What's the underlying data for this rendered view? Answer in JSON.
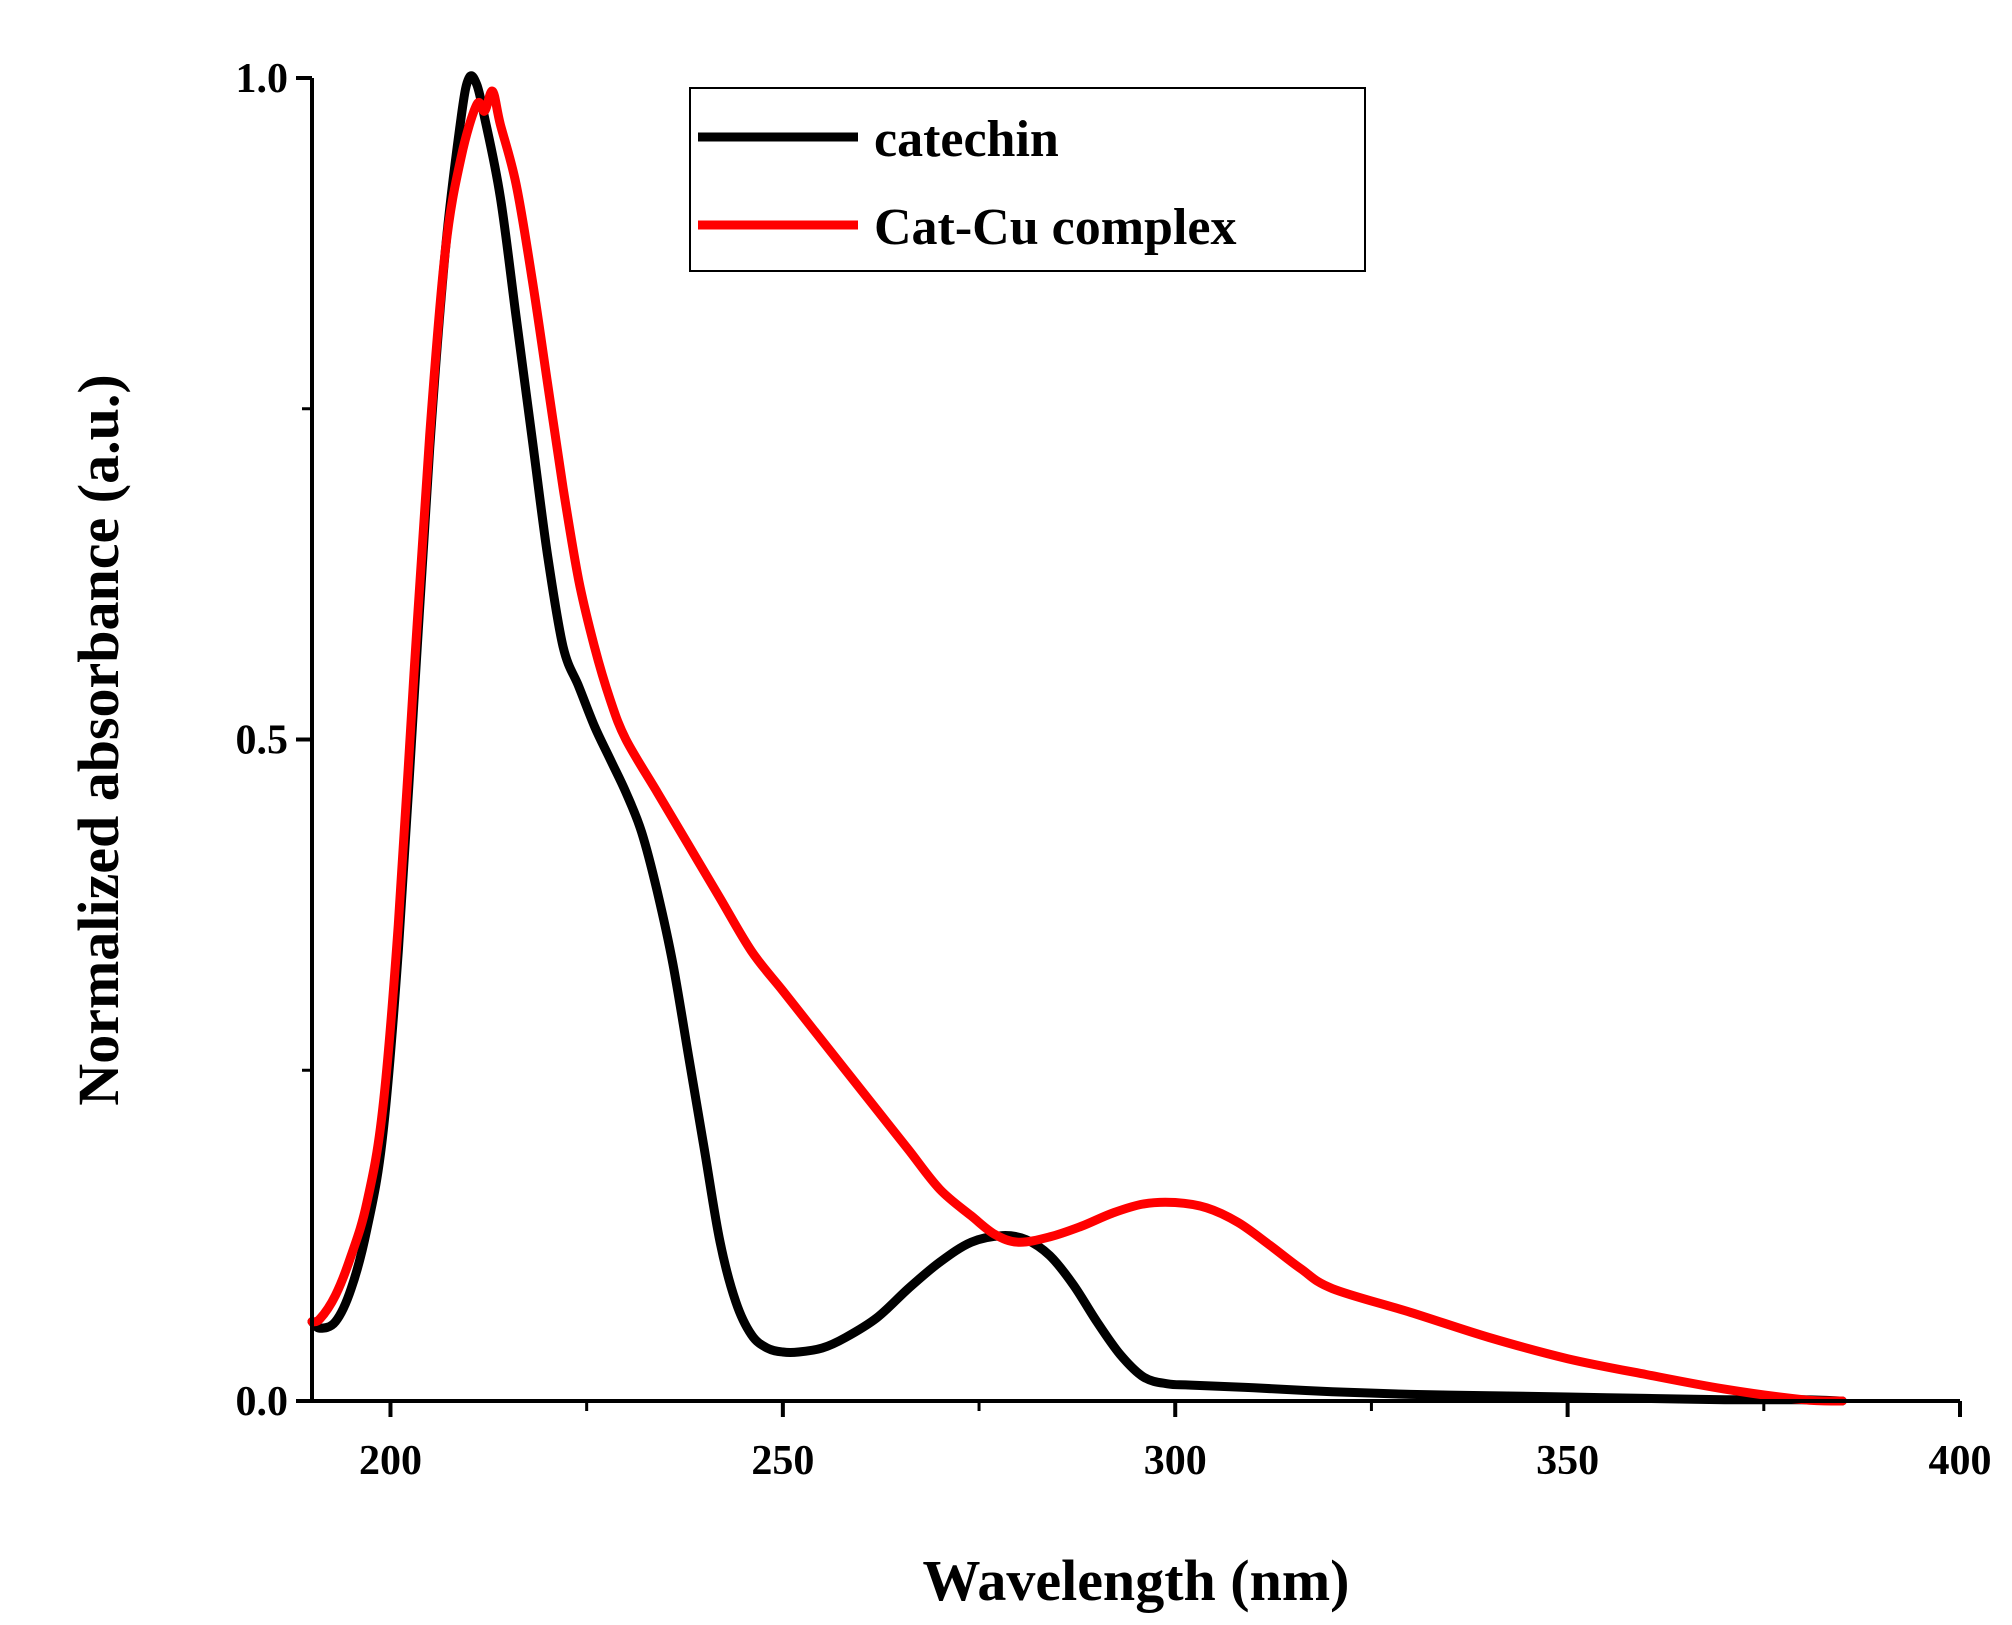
{
  "chart_data": {
    "type": "line",
    "title": "",
    "xlabel": "Wavelength (nm)",
    "ylabel": "Normalized absorbance (a.u.)",
    "xlim": [
      190,
      400
    ],
    "ylim": [
      0.0,
      1.0
    ],
    "x_ticks": [
      200,
      250,
      300,
      350,
      400
    ],
    "x_tick_labels": [
      "200",
      "250",
      "300",
      "350",
      "400"
    ],
    "y_ticks": [
      0.0,
      0.5,
      1.0
    ],
    "y_tick_labels": [
      "0.0",
      "0.5",
      "1.0"
    ],
    "x_minor_ticks": [
      225,
      275,
      325,
      375
    ],
    "y_minor_ticks": [
      0.25,
      0.75
    ],
    "grid": false,
    "legend_position": "top-center",
    "series": [
      {
        "name": "catechin",
        "color": "#000000",
        "x": [
          190,
          191,
          193,
          195,
          197,
          199,
          201,
          203,
          205,
          207,
          209,
          210,
          211,
          212,
          214,
          216,
          218,
          220,
          222,
          224,
          226,
          228,
          230,
          232,
          234,
          236,
          238,
          240,
          242,
          244,
          246,
          248,
          250,
          252,
          255,
          258,
          262,
          266,
          270,
          274,
          278,
          281,
          284,
          287,
          290,
          293,
          296,
          299,
          302,
          310,
          320,
          330,
          340,
          350,
          360,
          370,
          380,
          385
        ],
        "y": [
          0.06,
          0.055,
          0.06,
          0.085,
          0.13,
          0.2,
          0.34,
          0.53,
          0.72,
          0.87,
          0.97,
          1.0,
          0.995,
          0.97,
          0.91,
          0.82,
          0.73,
          0.64,
          0.57,
          0.54,
          0.51,
          0.485,
          0.46,
          0.43,
          0.385,
          0.33,
          0.26,
          0.19,
          0.12,
          0.075,
          0.05,
          0.04,
          0.037,
          0.037,
          0.04,
          0.048,
          0.063,
          0.085,
          0.105,
          0.12,
          0.125,
          0.122,
          0.11,
          0.088,
          0.06,
          0.035,
          0.018,
          0.013,
          0.012,
          0.01,
          0.007,
          0.005,
          0.004,
          0.003,
          0.002,
          0.001,
          0.001,
          0.0
        ]
      },
      {
        "name": "Cat-Cu complex",
        "color": "#ff0000",
        "x": [
          190,
          191,
          193,
          195,
          197,
          199,
          201,
          203,
          205,
          207,
          209,
          211,
          212,
          213,
          214,
          216,
          218,
          220,
          222,
          224,
          226,
          228,
          230,
          234,
          238,
          242,
          246,
          250,
          254,
          258,
          262,
          266,
          270,
          274,
          277,
          280,
          284,
          288,
          292,
          296,
          300,
          304,
          308,
          312,
          316,
          320,
          330,
          340,
          350,
          360,
          370,
          380,
          385
        ],
        "y": [
          0.06,
          0.062,
          0.08,
          0.11,
          0.15,
          0.22,
          0.36,
          0.55,
          0.73,
          0.87,
          0.94,
          0.98,
          0.975,
          0.99,
          0.965,
          0.92,
          0.85,
          0.77,
          0.69,
          0.62,
          0.57,
          0.53,
          0.5,
          0.46,
          0.42,
          0.38,
          0.34,
          0.31,
          0.28,
          0.25,
          0.22,
          0.19,
          0.16,
          0.14,
          0.126,
          0.12,
          0.124,
          0.132,
          0.142,
          0.149,
          0.15,
          0.146,
          0.135,
          0.118,
          0.1,
          0.085,
          0.067,
          0.048,
          0.032,
          0.02,
          0.009,
          0.001,
          0.0
        ]
      }
    ]
  }
}
